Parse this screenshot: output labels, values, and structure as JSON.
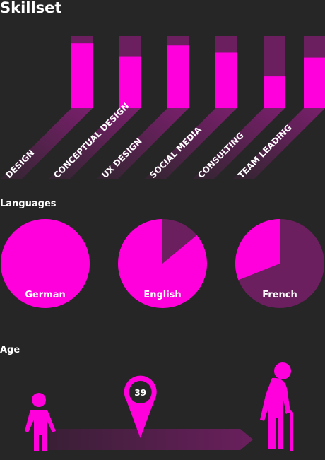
{
  "skillset": {
    "title": "Skillset",
    "categories": [
      "DESIGN",
      "CONCEPTUAL DESIGN",
      "UX DESIGN",
      "SOCIAL MEDIA",
      "CONSULTING",
      "TEAM LEADING"
    ],
    "values": [
      90,
      72,
      87,
      77,
      44,
      70
    ],
    "ylim": [
      0,
      100
    ]
  },
  "languages": {
    "title": "Languages",
    "categories": [
      "German",
      "English",
      "French"
    ],
    "values": [
      100,
      86,
      31
    ]
  },
  "age": {
    "title": "Age",
    "value": 39,
    "xlim": [
      0,
      100
    ]
  }
}
